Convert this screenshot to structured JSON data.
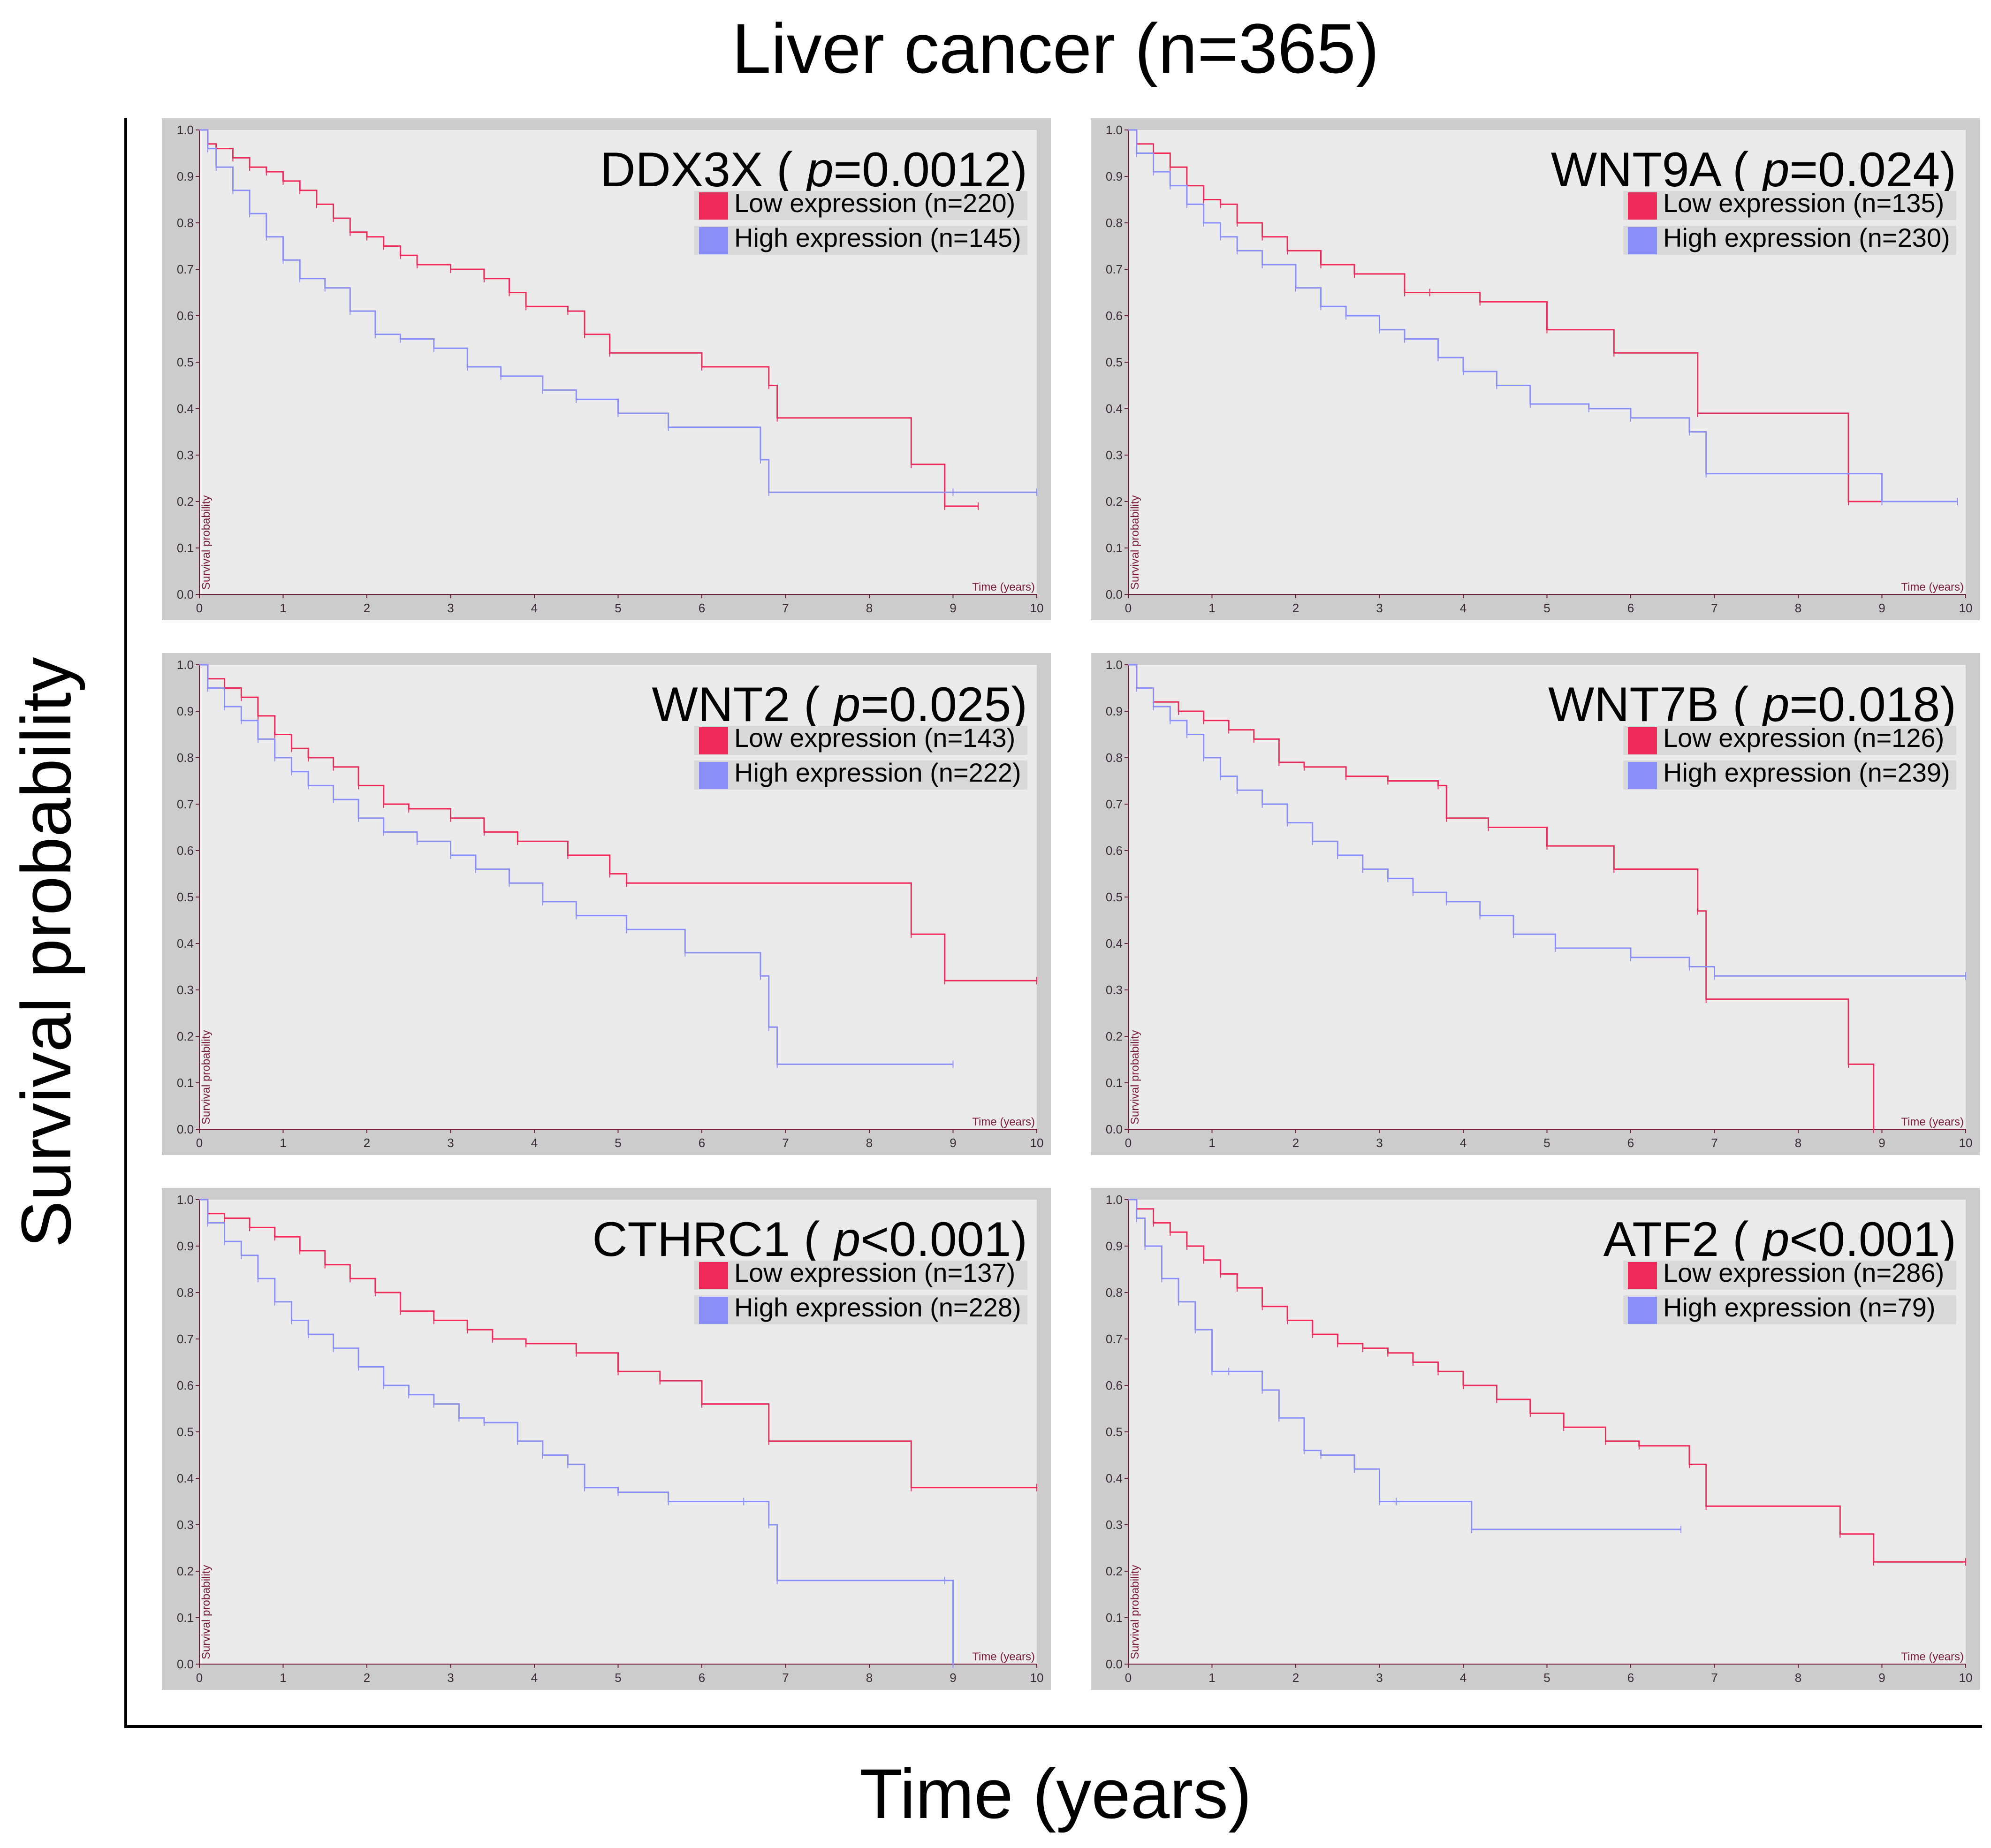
{
  "figure": {
    "title": "Liver cancer (n=365)",
    "xlabel": "Time (years)",
    "ylabel": "Survival probability"
  },
  "colors": {
    "low": "#ee2a5a",
    "high": "#8a8ef8",
    "panel_bg": "#ebebeb",
    "panel_frame": "#cccccc"
  },
  "chart_data": [
    {
      "type": "line",
      "gene": "DDX3X",
      "p_prefix": "=",
      "p_value": "0.0012",
      "inner_xlabel": "Time (years)",
      "inner_ylabel": "Survival probability",
      "xlim": [
        0,
        10
      ],
      "ylim": [
        0,
        1
      ],
      "xticks": [
        "0",
        "1",
        "2",
        "3",
        "4",
        "5",
        "6",
        "7",
        "8",
        "9",
        "10"
      ],
      "yticks": [
        "0.0",
        "0.1",
        "0.2",
        "0.3",
        "0.4",
        "0.5",
        "0.6",
        "0.7",
        "0.8",
        "0.9",
        "1.0"
      ],
      "series": [
        {
          "name": "Low expression (n=220)",
          "group": "low",
          "x": [
            0,
            0.1,
            0.2,
            0.4,
            0.6,
            0.8,
            1.0,
            1.2,
            1.4,
            1.6,
            1.8,
            2.0,
            2.2,
            2.4,
            2.6,
            3.0,
            3.4,
            3.7,
            3.9,
            4.4,
            4.6,
            4.9,
            6.0,
            6.8,
            6.9,
            8.5,
            8.9,
            9.3
          ],
          "y": [
            1.0,
            0.97,
            0.96,
            0.94,
            0.92,
            0.91,
            0.89,
            0.87,
            0.84,
            0.81,
            0.78,
            0.77,
            0.75,
            0.73,
            0.71,
            0.7,
            0.68,
            0.65,
            0.62,
            0.61,
            0.56,
            0.52,
            0.49,
            0.45,
            0.38,
            0.28,
            0.19,
            0.19
          ]
        },
        {
          "name": "High expression (n=145)",
          "group": "high",
          "x": [
            0,
            0.1,
            0.2,
            0.4,
            0.6,
            0.8,
            1.0,
            1.2,
            1.5,
            1.8,
            2.1,
            2.4,
            2.8,
            3.2,
            3.6,
            4.1,
            4.5,
            5.0,
            5.6,
            6.7,
            6.8,
            9.0,
            10.0
          ],
          "y": [
            1.0,
            0.96,
            0.92,
            0.87,
            0.82,
            0.77,
            0.72,
            0.68,
            0.66,
            0.61,
            0.56,
            0.55,
            0.53,
            0.49,
            0.47,
            0.44,
            0.42,
            0.39,
            0.36,
            0.29,
            0.22,
            0.22,
            0.22
          ]
        }
      ]
    },
    {
      "type": "line",
      "gene": "WNT9A",
      "p_prefix": "=",
      "p_value": "0.024",
      "inner_xlabel": "Time (years)",
      "inner_ylabel": "Survival probability",
      "xlim": [
        0,
        10
      ],
      "ylim": [
        0,
        1
      ],
      "xticks": [
        "0",
        "1",
        "2",
        "3",
        "4",
        "5",
        "6",
        "7",
        "8",
        "9",
        "10"
      ],
      "yticks": [
        "0.0",
        "0.1",
        "0.2",
        "0.3",
        "0.4",
        "0.5",
        "0.6",
        "0.7",
        "0.8",
        "0.9",
        "1.0"
      ],
      "series": [
        {
          "name": "Low expression (n=135)",
          "group": "low",
          "x": [
            0,
            0.1,
            0.3,
            0.5,
            0.7,
            0.9,
            1.1,
            1.3,
            1.6,
            1.9,
            2.3,
            2.7,
            3.3,
            3.6,
            4.2,
            5.0,
            5.8,
            6.8,
            8.6,
            9.0
          ],
          "y": [
            1.0,
            0.97,
            0.95,
            0.92,
            0.88,
            0.85,
            0.84,
            0.8,
            0.77,
            0.74,
            0.71,
            0.69,
            0.65,
            0.65,
            0.63,
            0.57,
            0.52,
            0.39,
            0.2,
            0.2
          ]
        },
        {
          "name": "High expression (n=230)",
          "group": "high",
          "x": [
            0,
            0.1,
            0.3,
            0.5,
            0.7,
            0.9,
            1.1,
            1.3,
            1.6,
            2.0,
            2.3,
            2.6,
            3.0,
            3.3,
            3.7,
            4.0,
            4.4,
            4.8,
            5.5,
            6.0,
            6.7,
            6.9,
            9.0,
            9.9
          ],
          "y": [
            1.0,
            0.95,
            0.91,
            0.88,
            0.84,
            0.8,
            0.77,
            0.74,
            0.71,
            0.66,
            0.62,
            0.6,
            0.57,
            0.55,
            0.51,
            0.48,
            0.45,
            0.41,
            0.4,
            0.38,
            0.35,
            0.26,
            0.2,
            0.2
          ]
        }
      ]
    },
    {
      "type": "line",
      "gene": "WNT2",
      "p_prefix": "=",
      "p_value": "0.025",
      "inner_xlabel": "Time (years)",
      "inner_ylabel": "Survival probability",
      "xlim": [
        0,
        10
      ],
      "ylim": [
        0,
        1
      ],
      "xticks": [
        "0",
        "1",
        "2",
        "3",
        "4",
        "5",
        "6",
        "7",
        "8",
        "9",
        "10"
      ],
      "yticks": [
        "0.0",
        "0.1",
        "0.2",
        "0.3",
        "0.4",
        "0.5",
        "0.6",
        "0.7",
        "0.8",
        "0.9",
        "1.0"
      ],
      "series": [
        {
          "name": "Low expression (n=143)",
          "group": "low",
          "x": [
            0,
            0.1,
            0.3,
            0.5,
            0.7,
            0.9,
            1.1,
            1.3,
            1.6,
            1.9,
            2.2,
            2.5,
            3.0,
            3.4,
            3.8,
            4.4,
            4.9,
            5.1,
            8.5,
            8.9,
            10.0
          ],
          "y": [
            1.0,
            0.97,
            0.95,
            0.93,
            0.89,
            0.85,
            0.82,
            0.8,
            0.78,
            0.74,
            0.7,
            0.69,
            0.67,
            0.64,
            0.62,
            0.59,
            0.55,
            0.53,
            0.42,
            0.32,
            0.32
          ]
        },
        {
          "name": "High expression (n=222)",
          "group": "high",
          "x": [
            0,
            0.1,
            0.3,
            0.5,
            0.7,
            0.9,
            1.1,
            1.3,
            1.6,
            1.9,
            2.2,
            2.6,
            3.0,
            3.3,
            3.7,
            4.1,
            4.5,
            5.1,
            5.8,
            6.7,
            6.8,
            6.9,
            9.0
          ],
          "y": [
            1.0,
            0.95,
            0.91,
            0.88,
            0.84,
            0.8,
            0.77,
            0.74,
            0.71,
            0.67,
            0.64,
            0.62,
            0.59,
            0.56,
            0.53,
            0.49,
            0.46,
            0.43,
            0.38,
            0.33,
            0.22,
            0.14,
            0.14
          ]
        }
      ]
    },
    {
      "type": "line",
      "gene": "WNT7B",
      "p_prefix": "=",
      "p_value": "0.018",
      "inner_xlabel": "Time (years)",
      "inner_ylabel": "Survival probability",
      "xlim": [
        0,
        10
      ],
      "ylim": [
        0,
        1
      ],
      "xticks": [
        "0",
        "1",
        "2",
        "3",
        "4",
        "5",
        "6",
        "7",
        "8",
        "9",
        "10"
      ],
      "yticks": [
        "0.0",
        "0.1",
        "0.2",
        "0.3",
        "0.4",
        "0.5",
        "0.6",
        "0.7",
        "0.8",
        "0.9",
        "1.0"
      ],
      "series": [
        {
          "name": "Low expression (n=126)",
          "group": "low",
          "x": [
            0,
            0.1,
            0.3,
            0.6,
            0.9,
            1.2,
            1.5,
            1.8,
            2.1,
            2.6,
            3.1,
            3.7,
            3.8,
            4.3,
            5.0,
            5.8,
            6.8,
            6.9,
            8.6,
            8.9
          ],
          "y": [
            1.0,
            0.95,
            0.92,
            0.9,
            0.88,
            0.86,
            0.84,
            0.79,
            0.78,
            0.76,
            0.75,
            0.74,
            0.67,
            0.65,
            0.61,
            0.56,
            0.47,
            0.28,
            0.14,
            0.0
          ]
        },
        {
          "name": "High expression (n=239)",
          "group": "high",
          "x": [
            0,
            0.1,
            0.3,
            0.5,
            0.7,
            0.9,
            1.1,
            1.3,
            1.6,
            1.9,
            2.2,
            2.5,
            2.8,
            3.1,
            3.4,
            3.8,
            4.2,
            4.6,
            5.1,
            6.0,
            6.7,
            7.0,
            10.0
          ],
          "y": [
            1.0,
            0.95,
            0.91,
            0.88,
            0.85,
            0.8,
            0.76,
            0.73,
            0.7,
            0.66,
            0.62,
            0.59,
            0.56,
            0.54,
            0.51,
            0.49,
            0.46,
            0.42,
            0.39,
            0.37,
            0.35,
            0.33,
            0.33
          ]
        }
      ]
    },
    {
      "type": "line",
      "gene": "CTHRC1",
      "p_prefix": "<",
      "p_value": "0.001",
      "inner_xlabel": "Time (years)",
      "inner_ylabel": "Survival probability",
      "xlim": [
        0,
        10
      ],
      "ylim": [
        0,
        1
      ],
      "xticks": [
        "0",
        "1",
        "2",
        "3",
        "4",
        "5",
        "6",
        "7",
        "8",
        "9",
        "10"
      ],
      "yticks": [
        "0.0",
        "0.1",
        "0.2",
        "0.3",
        "0.4",
        "0.5",
        "0.6",
        "0.7",
        "0.8",
        "0.9",
        "1.0"
      ],
      "series": [
        {
          "name": "Low expression (n=137)",
          "group": "low",
          "x": [
            0,
            0.1,
            0.3,
            0.6,
            0.9,
            1.2,
            1.5,
            1.8,
            2.1,
            2.4,
            2.8,
            3.2,
            3.5,
            3.9,
            4.5,
            5.0,
            5.5,
            6.0,
            6.8,
            8.5,
            10.0
          ],
          "y": [
            1.0,
            0.97,
            0.96,
            0.94,
            0.92,
            0.89,
            0.86,
            0.83,
            0.8,
            0.76,
            0.74,
            0.72,
            0.7,
            0.69,
            0.67,
            0.63,
            0.61,
            0.56,
            0.48,
            0.38,
            0.38
          ]
        },
        {
          "name": "High expression (n=228)",
          "group": "high",
          "x": [
            0,
            0.1,
            0.3,
            0.5,
            0.7,
            0.9,
            1.1,
            1.3,
            1.6,
            1.9,
            2.2,
            2.5,
            2.8,
            3.1,
            3.4,
            3.8,
            4.1,
            4.4,
            4.6,
            5.0,
            5.6,
            6.5,
            6.8,
            6.9,
            8.9,
            9.0
          ],
          "y": [
            1.0,
            0.95,
            0.91,
            0.88,
            0.83,
            0.78,
            0.74,
            0.71,
            0.68,
            0.64,
            0.6,
            0.58,
            0.56,
            0.53,
            0.52,
            0.48,
            0.45,
            0.43,
            0.38,
            0.37,
            0.35,
            0.35,
            0.3,
            0.18,
            0.18,
            0.0
          ]
        }
      ]
    },
    {
      "type": "line",
      "gene": "ATF2",
      "p_prefix": "<",
      "p_value": "0.001",
      "inner_xlabel": "Time (years)",
      "inner_ylabel": "Survival probability",
      "xlim": [
        0,
        10
      ],
      "ylim": [
        0,
        1
      ],
      "xticks": [
        "0",
        "1",
        "2",
        "3",
        "4",
        "5",
        "6",
        "7",
        "8",
        "9",
        "10"
      ],
      "yticks": [
        "0.0",
        "0.1",
        "0.2",
        "0.3",
        "0.4",
        "0.5",
        "0.6",
        "0.7",
        "0.8",
        "0.9",
        "1.0"
      ],
      "series": [
        {
          "name": "Low expression (n=286)",
          "group": "low",
          "x": [
            0,
            0.1,
            0.3,
            0.5,
            0.7,
            0.9,
            1.1,
            1.3,
            1.6,
            1.9,
            2.2,
            2.5,
            2.8,
            3.1,
            3.4,
            3.7,
            4.0,
            4.4,
            4.8,
            5.2,
            5.7,
            6.1,
            6.7,
            6.9,
            8.5,
            8.9,
            10.0
          ],
          "y": [
            1.0,
            0.98,
            0.95,
            0.93,
            0.9,
            0.87,
            0.84,
            0.81,
            0.77,
            0.74,
            0.71,
            0.69,
            0.68,
            0.67,
            0.65,
            0.63,
            0.6,
            0.57,
            0.54,
            0.51,
            0.48,
            0.47,
            0.43,
            0.34,
            0.28,
            0.22,
            0.22
          ]
        },
        {
          "name": "High expression (n=79)",
          "group": "high",
          "x": [
            0,
            0.1,
            0.2,
            0.4,
            0.6,
            0.8,
            1.0,
            1.2,
            1.6,
            1.8,
            2.1,
            2.3,
            2.7,
            3.0,
            3.2,
            4.1,
            6.6
          ],
          "y": [
            1.0,
            0.96,
            0.9,
            0.83,
            0.78,
            0.72,
            0.63,
            0.63,
            0.59,
            0.53,
            0.46,
            0.45,
            0.42,
            0.35,
            0.35,
            0.29,
            0.29
          ]
        }
      ]
    }
  ]
}
